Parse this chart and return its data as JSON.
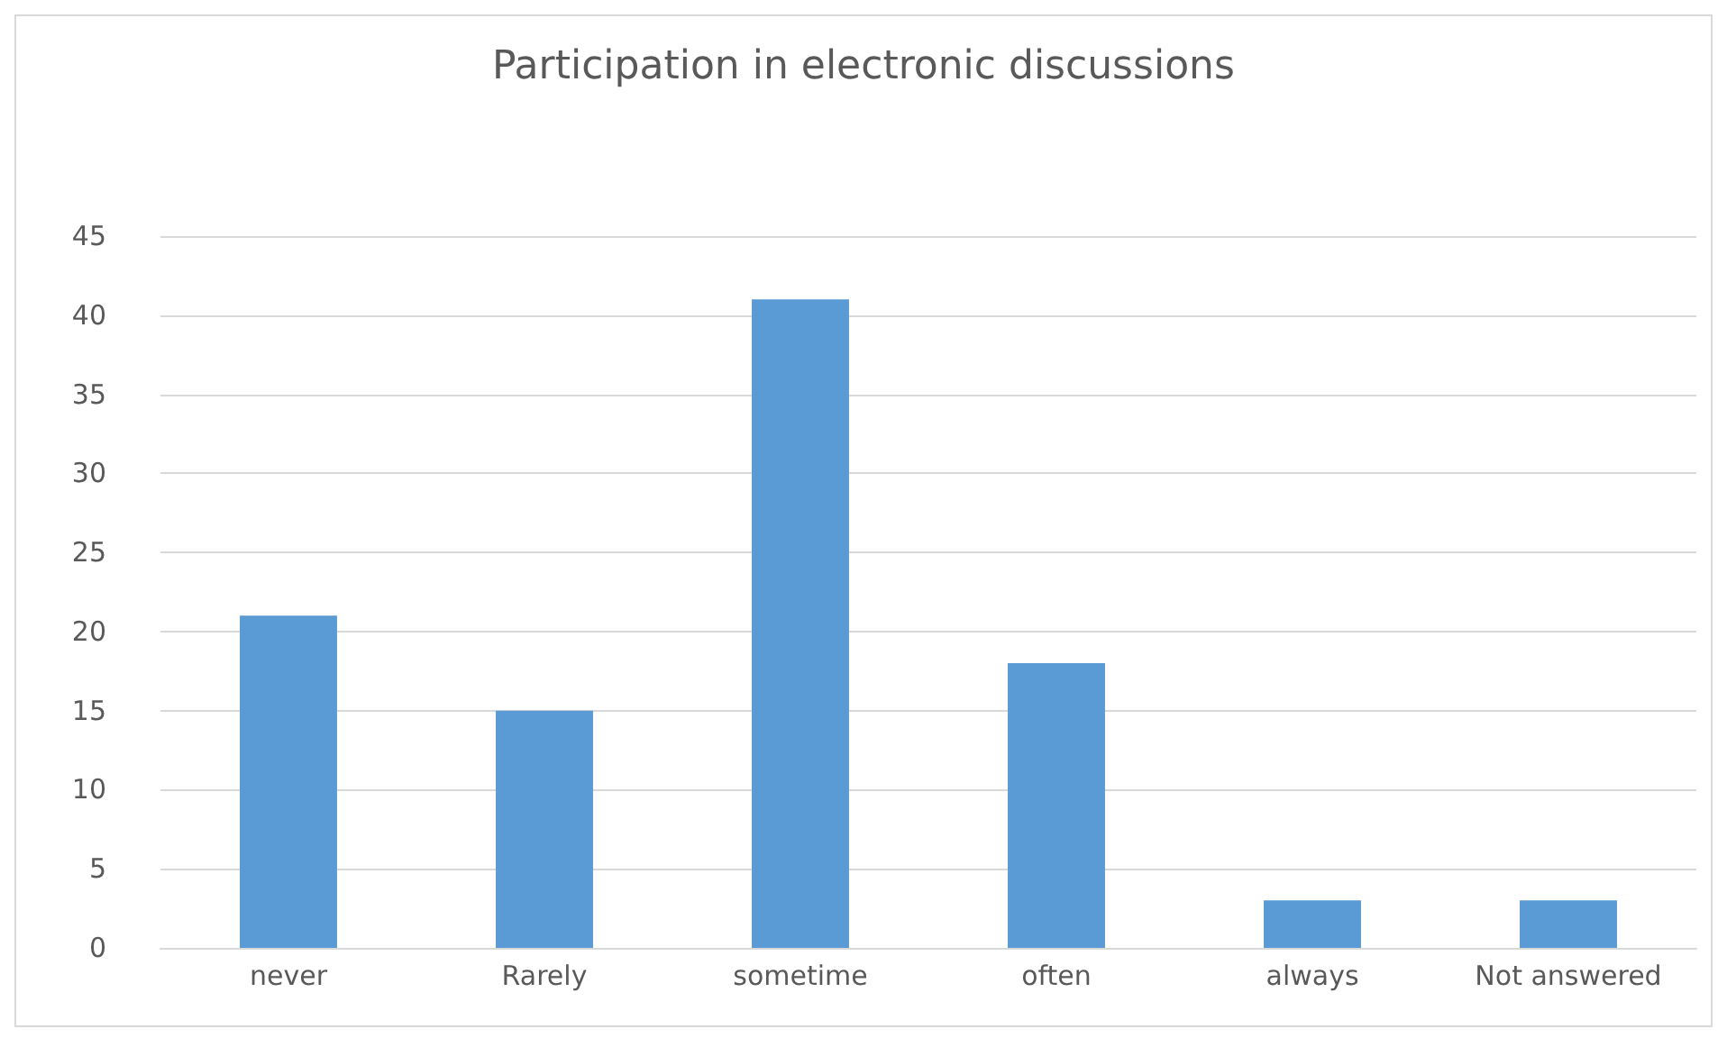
{
  "chart_data": {
    "type": "bar",
    "title": "Participation in electronic discussions",
    "categories": [
      "never",
      "Rarely",
      "sometime",
      "often",
      "always",
      "Not answered"
    ],
    "values": [
      21,
      15,
      41,
      18,
      3,
      3
    ],
    "color": "#5b9bd5",
    "ylim": [
      0,
      45
    ],
    "yticks": [
      0,
      5,
      10,
      15,
      20,
      25,
      30,
      35,
      40,
      45
    ],
    "grid": "y"
  }
}
